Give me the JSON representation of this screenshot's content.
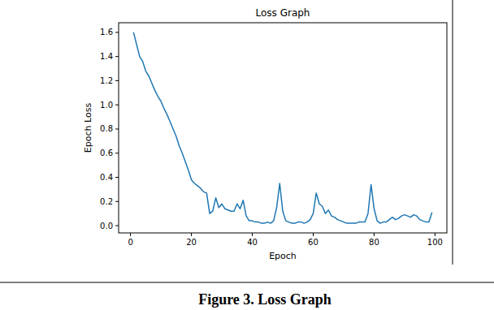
{
  "chart_data": {
    "type": "line",
    "title": "Loss Graph",
    "x_label": "Epoch",
    "y_label": "Epoch Loss",
    "x": [
      1,
      2,
      3,
      4,
      5,
      6,
      7,
      8,
      9,
      10,
      11,
      12,
      13,
      14,
      15,
      16,
      17,
      18,
      19,
      20,
      21,
      22,
      23,
      24,
      25,
      26,
      27,
      28,
      29,
      30,
      31,
      32,
      33,
      34,
      35,
      36,
      37,
      38,
      39,
      40,
      41,
      42,
      43,
      44,
      45,
      46,
      47,
      48,
      49,
      50,
      51,
      52,
      53,
      54,
      55,
      56,
      57,
      58,
      59,
      60,
      61,
      62,
      63,
      64,
      65,
      66,
      67,
      68,
      69,
      70,
      71,
      72,
      73,
      74,
      75,
      76,
      77,
      78,
      79,
      80,
      81,
      82,
      83,
      84,
      85,
      86,
      87,
      88,
      89,
      90,
      91,
      92,
      93,
      94,
      95,
      96,
      97,
      98,
      99
    ],
    "values": [
      1.6,
      1.5,
      1.4,
      1.36,
      1.28,
      1.24,
      1.18,
      1.12,
      1.07,
      1.03,
      0.97,
      0.92,
      0.86,
      0.8,
      0.74,
      0.66,
      0.6,
      0.53,
      0.46,
      0.38,
      0.35,
      0.33,
      0.31,
      0.28,
      0.27,
      0.1,
      0.12,
      0.23,
      0.15,
      0.18,
      0.14,
      0.13,
      0.12,
      0.12,
      0.18,
      0.14,
      0.21,
      0.08,
      0.04,
      0.04,
      0.03,
      0.03,
      0.02,
      0.02,
      0.03,
      0.02,
      0.04,
      0.15,
      0.35,
      0.12,
      0.04,
      0.03,
      0.02,
      0.02,
      0.03,
      0.03,
      0.02,
      0.03,
      0.05,
      0.1,
      0.27,
      0.18,
      0.16,
      0.1,
      0.13,
      0.08,
      0.07,
      0.05,
      0.04,
      0.03,
      0.02,
      0.02,
      0.02,
      0.02,
      0.03,
      0.03,
      0.03,
      0.1,
      0.34,
      0.14,
      0.04,
      0.02,
      0.03,
      0.03,
      0.05,
      0.07,
      0.05,
      0.06,
      0.08,
      0.09,
      0.08,
      0.07,
      0.09,
      0.08,
      0.05,
      0.04,
      0.03,
      0.03,
      0.11
    ],
    "color": "#1f77b4",
    "xlim": [
      -3.9,
      103.9
    ],
    "xticks": [
      0,
      20,
      40,
      60,
      80,
      100
    ],
    "ylim": [
      -0.06,
      1.68
    ],
    "yticks": [
      {
        "value": 0,
        "label": "0.0"
      },
      {
        "value": 0.2,
        "label": "0.2"
      },
      {
        "value": 0.4,
        "label": "0.4"
      },
      {
        "value": 0.6,
        "label": "0.6"
      },
      {
        "value": 0.8,
        "label": "0.8"
      },
      {
        "value": 1.0,
        "label": "1.0"
      },
      {
        "value": 1.2,
        "label": "1.2"
      },
      {
        "value": 1.4,
        "label": "1.4"
      },
      {
        "value": 1.6,
        "label": "1.6"
      }
    ],
    "grid": false
  },
  "caption": "Figure 3. Loss Graph"
}
